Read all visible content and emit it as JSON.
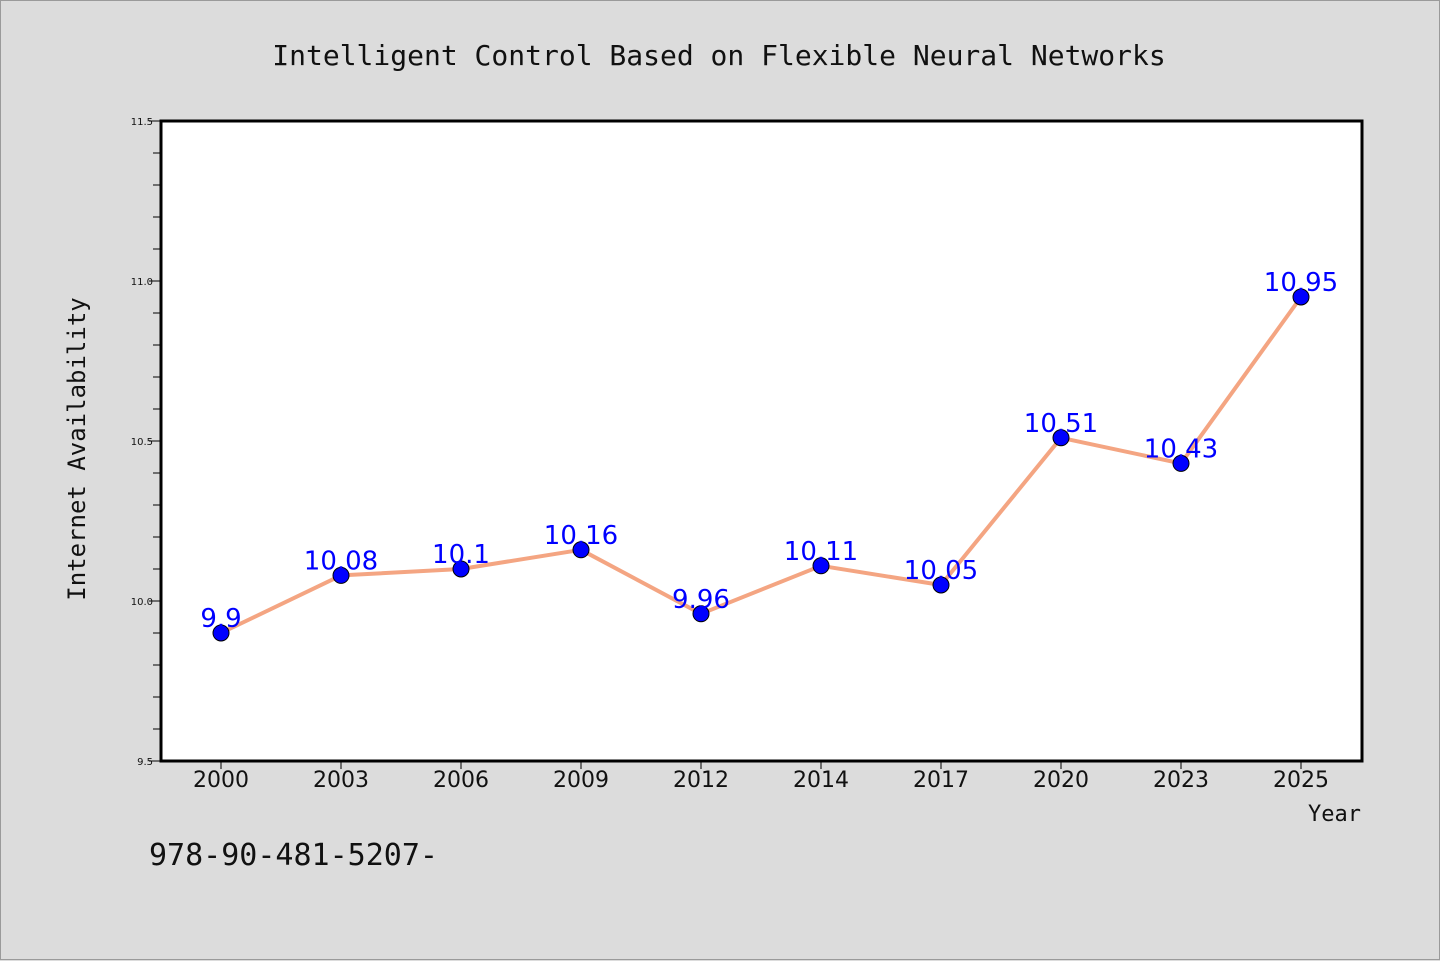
{
  "chart_data": {
    "type": "line",
    "title": "Intelligent Control Based on Flexible Neural Networks",
    "xlabel": "Year",
    "ylabel": "Internet Availability",
    "categories": [
      "2000",
      "2003",
      "2006",
      "2009",
      "2012",
      "2014",
      "2017",
      "2020",
      "2023",
      "2025"
    ],
    "series": [
      {
        "values": [
          9.9,
          10.08,
          10.1,
          10.16,
          9.96,
          10.11,
          10.05,
          10.51,
          10.43,
          10.95
        ],
        "labels": [
          "9.9",
          "10.08",
          "10.1",
          "10.16",
          "9.96",
          "10.11",
          "10.05",
          "10.51",
          "10.43",
          "10.95"
        ],
        "line_color": "#f4a582",
        "marker_color": "#0000ff",
        "label_color": "#0000ff"
      }
    ],
    "ylim": [
      9.5,
      11.5
    ],
    "yticks": [
      "9.5",
      "10.0",
      "10.5",
      "11.0",
      "11.5"
    ],
    "grid": false,
    "legend": "none"
  },
  "footer": {
    "isbn_text": "978-90-481-5207-"
  }
}
